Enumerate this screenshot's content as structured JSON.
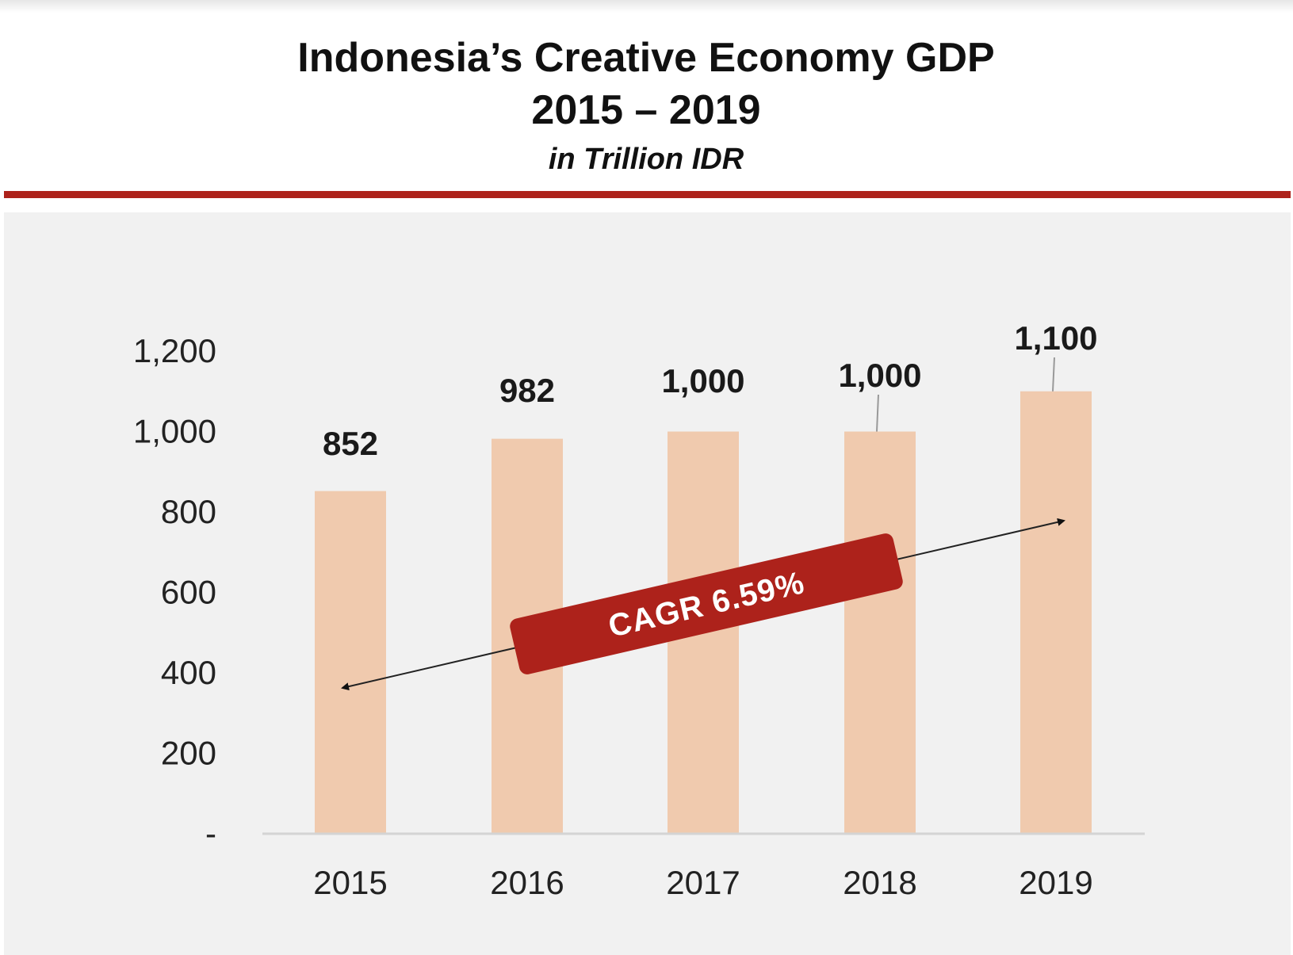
{
  "chart_data": {
    "type": "bar",
    "title": "Indonesia’s Creative Economy GDP",
    "subtitle_years": "2015 – 2019",
    "unit_label": "in Trillion IDR",
    "categories": [
      "2015",
      "2016",
      "2017",
      "2018",
      "2019"
    ],
    "values": [
      852,
      982,
      1000,
      1000,
      1100
    ],
    "data_labels": [
      "852",
      "982",
      "1,000",
      "1,000",
      "1,100"
    ],
    "ylim": [
      0,
      1200
    ],
    "yticks": [
      0,
      200,
      400,
      600,
      800,
      1000,
      1200
    ],
    "ytick_labels": [
      "-",
      "200",
      "400",
      "600",
      "800",
      "1,000",
      "1,200"
    ],
    "grid": false,
    "annotation": {
      "text": "CAGR 6.59%",
      "from": "2015",
      "to": "2019"
    },
    "colors": {
      "bar": "#f0caae",
      "accent": "#ad221b",
      "panel": "#f1f1f1"
    }
  }
}
